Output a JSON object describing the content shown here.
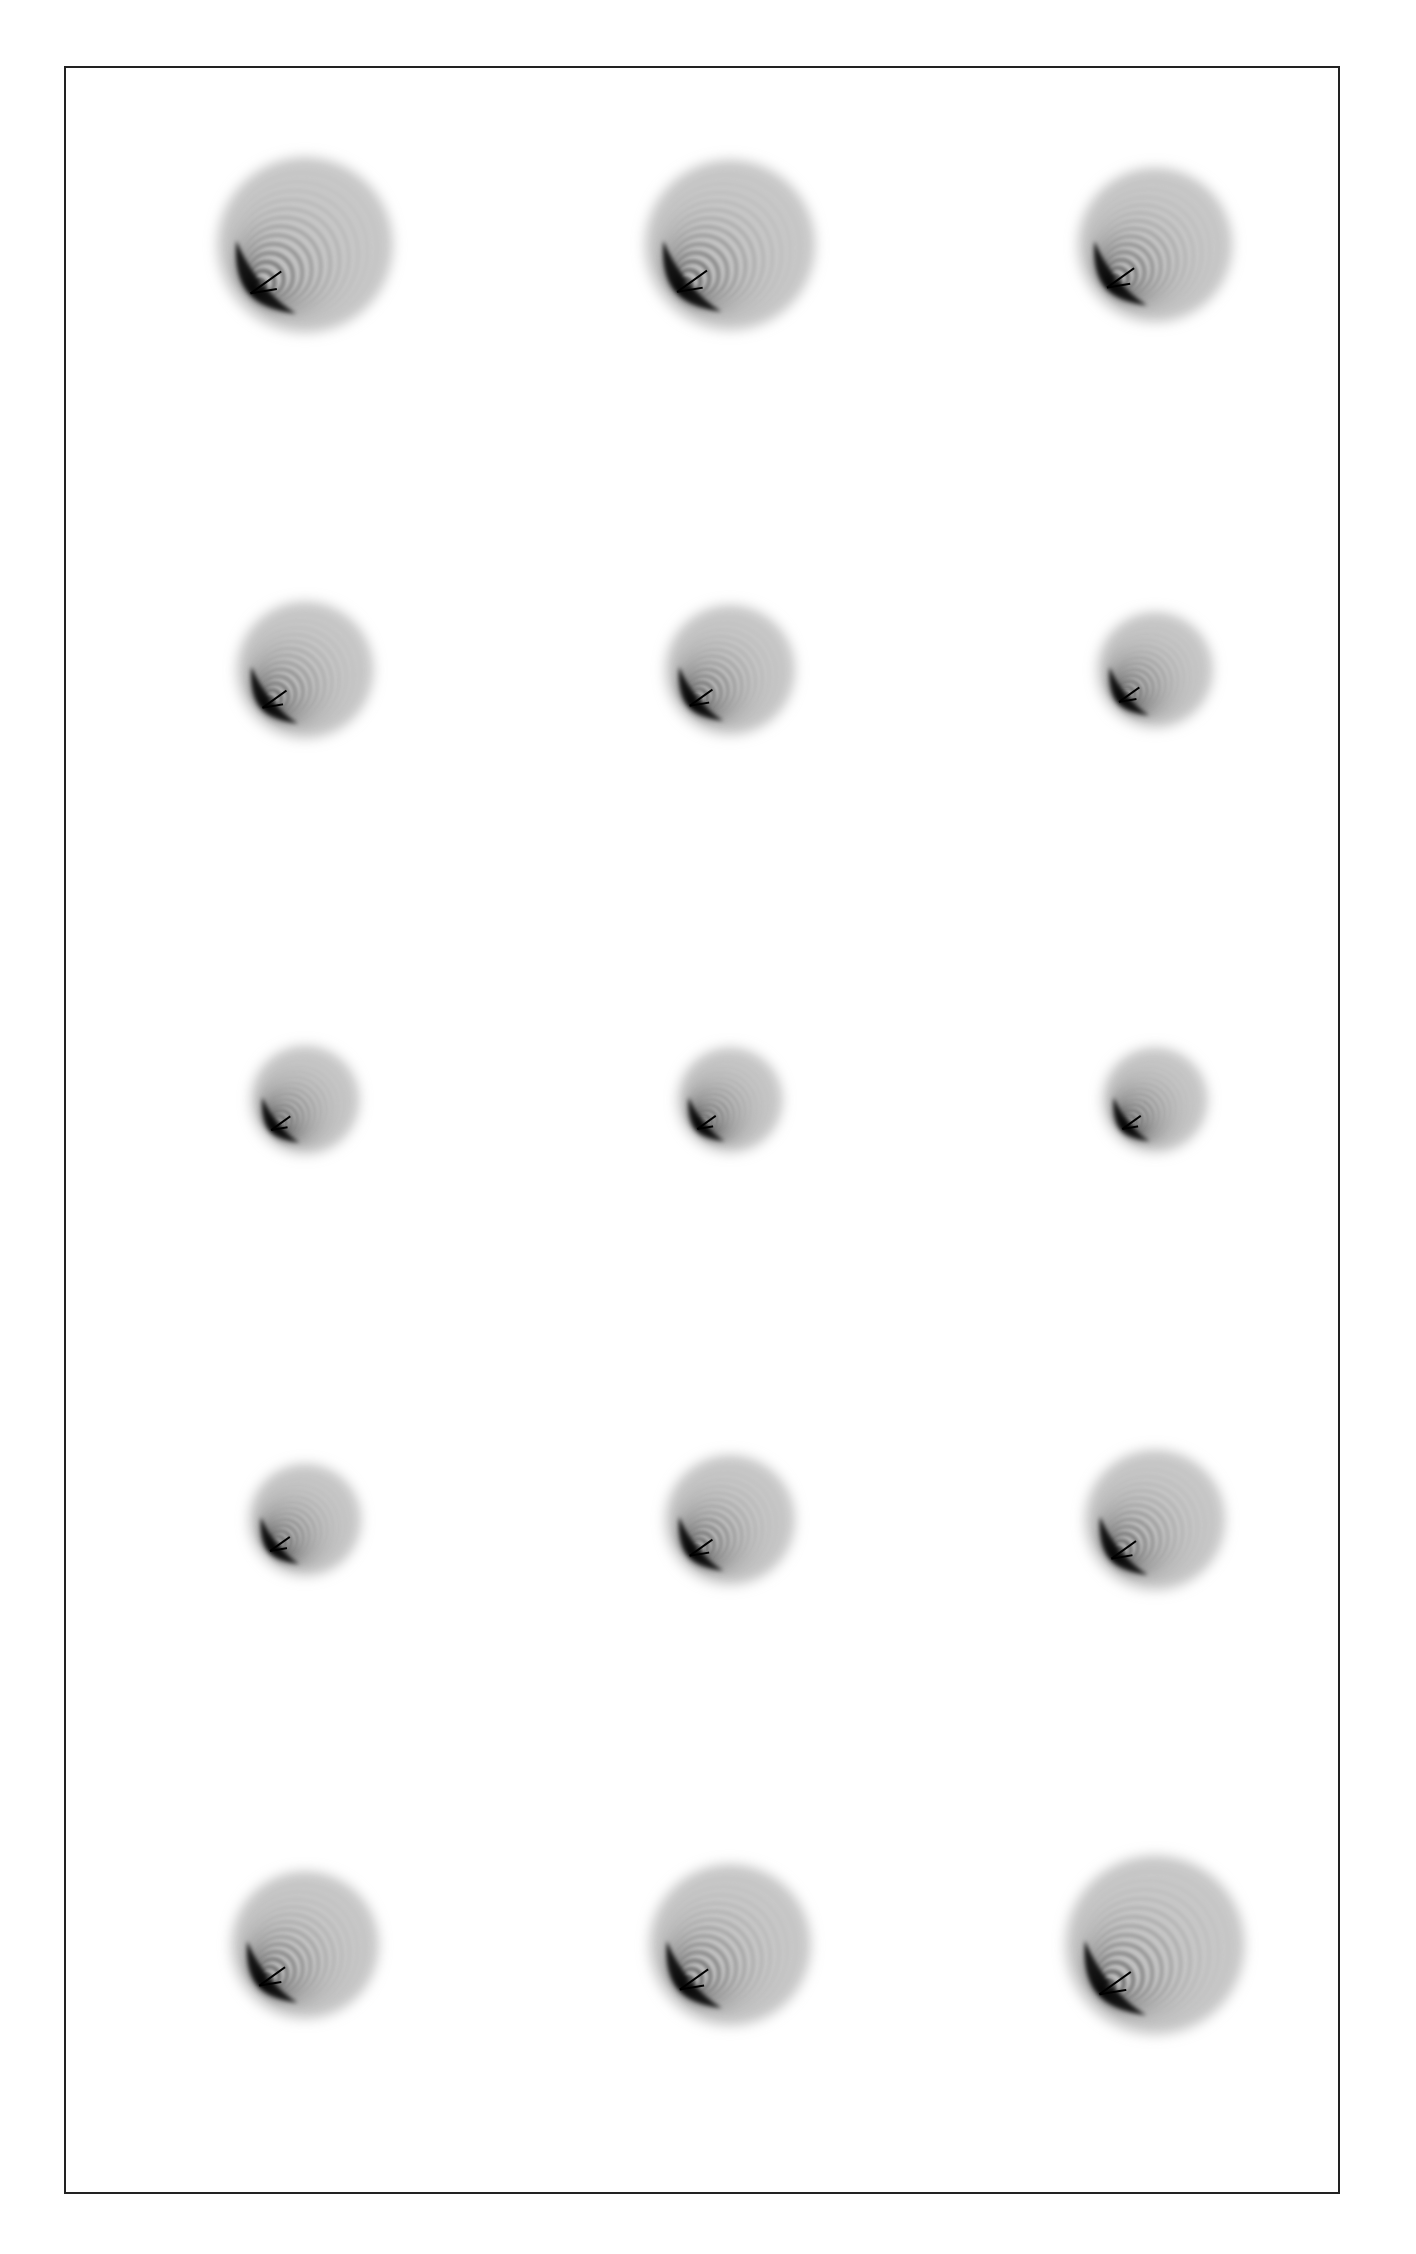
{
  "grid": {
    "rows": 5,
    "cols": 3,
    "cells": [
      {
        "row": 1,
        "col": 1,
        "relative_size": 1.0
      },
      {
        "row": 1,
        "col": 2,
        "relative_size": 0.97
      },
      {
        "row": 1,
        "col": 3,
        "relative_size": 0.88
      },
      {
        "row": 2,
        "col": 1,
        "relative_size": 0.78
      },
      {
        "row": 2,
        "col": 2,
        "relative_size": 0.74
      },
      {
        "row": 2,
        "col": 3,
        "relative_size": 0.66
      },
      {
        "row": 3,
        "col": 1,
        "relative_size": 0.62
      },
      {
        "row": 3,
        "col": 2,
        "relative_size": 0.6
      },
      {
        "row": 3,
        "col": 3,
        "relative_size": 0.6
      },
      {
        "row": 4,
        "col": 1,
        "relative_size": 0.64
      },
      {
        "row": 4,
        "col": 2,
        "relative_size": 0.74
      },
      {
        "row": 4,
        "col": 3,
        "relative_size": 0.8
      },
      {
        "row": 5,
        "col": 1,
        "relative_size": 0.84
      },
      {
        "row": 5,
        "col": 2,
        "relative_size": 0.92
      },
      {
        "row": 5,
        "col": 3,
        "relative_size": 1.02
      }
    ]
  },
  "colors": {
    "background": "#ffffff",
    "frame": "#222222",
    "glyph_dark": "#000000",
    "glyph_mid": "#6e6e6e",
    "glyph_light": "#c8c8c8"
  }
}
